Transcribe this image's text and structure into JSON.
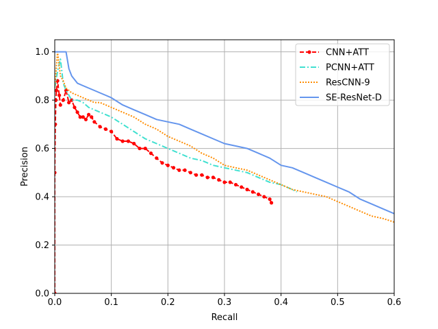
{
  "chart_data": {
    "type": "line",
    "title": "",
    "xlabel": "Recall",
    "ylabel": "Precision",
    "xlim": [
      0.0,
      0.6
    ],
    "ylim": [
      0.0,
      1.05
    ],
    "xticks": [
      0.0,
      0.1,
      0.2,
      0.3,
      0.4,
      0.5,
      0.6
    ],
    "yticks": [
      0.0,
      0.2,
      0.4,
      0.6,
      0.8,
      1.0
    ],
    "xtick_labels": [
      "0.0",
      "0.1",
      "0.2",
      "0.3",
      "0.4",
      "0.5",
      "0.6"
    ],
    "ytick_labels": [
      "0.0",
      "0.2",
      "0.4",
      "0.6",
      "0.8",
      "1.0"
    ],
    "grid": true,
    "legend_position": "top-right",
    "series": [
      {
        "name": "CNN+ATT",
        "color": "#ff0000",
        "style": "dashed-dot-markers",
        "x": [
          0.0,
          0.0,
          0.001,
          0.002,
          0.003,
          0.005,
          0.008,
          0.01,
          0.015,
          0.02,
          0.025,
          0.03,
          0.035,
          0.04,
          0.045,
          0.05,
          0.055,
          0.06,
          0.065,
          0.07,
          0.08,
          0.09,
          0.1,
          0.11,
          0.12,
          0.13,
          0.14,
          0.15,
          0.16,
          0.17,
          0.18,
          0.19,
          0.2,
          0.21,
          0.22,
          0.23,
          0.24,
          0.25,
          0.26,
          0.27,
          0.28,
          0.29,
          0.3,
          0.31,
          0.32,
          0.33,
          0.34,
          0.35,
          0.36,
          0.37,
          0.38,
          0.383
        ],
        "y": [
          0.0,
          0.5,
          0.7,
          0.8,
          0.84,
          0.88,
          0.82,
          0.78,
          0.8,
          0.84,
          0.79,
          0.8,
          0.77,
          0.75,
          0.73,
          0.73,
          0.72,
          0.74,
          0.73,
          0.71,
          0.69,
          0.68,
          0.67,
          0.64,
          0.63,
          0.63,
          0.62,
          0.6,
          0.6,
          0.58,
          0.56,
          0.54,
          0.53,
          0.52,
          0.51,
          0.51,
          0.5,
          0.49,
          0.49,
          0.48,
          0.48,
          0.47,
          0.46,
          0.46,
          0.45,
          0.44,
          0.43,
          0.42,
          0.41,
          0.4,
          0.39,
          0.375
        ]
      },
      {
        "name": "PCNN+ATT",
        "color": "#40e0d0",
        "style": "dash-dot",
        "x": [
          0.0,
          0.005,
          0.01,
          0.015,
          0.02,
          0.025,
          0.03,
          0.04,
          0.05,
          0.06,
          0.07,
          0.08,
          0.09,
          0.1,
          0.12,
          0.14,
          0.16,
          0.18,
          0.2,
          0.22,
          0.24,
          0.26,
          0.28,
          0.3,
          0.32,
          0.34,
          0.36,
          0.38,
          0.4,
          0.42,
          0.428
        ],
        "y": [
          0.85,
          0.92,
          0.97,
          0.87,
          0.84,
          0.82,
          0.8,
          0.8,
          0.79,
          0.77,
          0.76,
          0.75,
          0.74,
          0.73,
          0.7,
          0.67,
          0.64,
          0.62,
          0.6,
          0.58,
          0.56,
          0.55,
          0.53,
          0.52,
          0.51,
          0.5,
          0.48,
          0.46,
          0.45,
          0.43,
          0.42
        ]
      },
      {
        "name": "ResCNN-9",
        "color": "#ff8c00",
        "style": "dotted",
        "x": [
          0.0,
          0.005,
          0.01,
          0.015,
          0.02,
          0.03,
          0.04,
          0.05,
          0.06,
          0.07,
          0.08,
          0.09,
          0.1,
          0.12,
          0.14,
          0.16,
          0.18,
          0.2,
          0.22,
          0.24,
          0.26,
          0.28,
          0.3,
          0.32,
          0.34,
          0.36,
          0.38,
          0.4,
          0.42,
          0.44,
          0.46,
          0.48,
          0.5,
          0.52,
          0.54,
          0.56,
          0.58,
          0.6
        ],
        "y": [
          0.85,
          1.0,
          0.9,
          0.88,
          0.85,
          0.83,
          0.82,
          0.81,
          0.8,
          0.79,
          0.79,
          0.78,
          0.77,
          0.75,
          0.73,
          0.7,
          0.68,
          0.65,
          0.63,
          0.61,
          0.58,
          0.56,
          0.53,
          0.52,
          0.51,
          0.49,
          0.47,
          0.45,
          0.43,
          0.42,
          0.41,
          0.4,
          0.38,
          0.36,
          0.34,
          0.32,
          0.31,
          0.295
        ]
      },
      {
        "name": "SE-ResNet-D",
        "color": "#6495ed",
        "style": "solid",
        "x": [
          0.0,
          0.005,
          0.01,
          0.015,
          0.02,
          0.025,
          0.03,
          0.04,
          0.05,
          0.06,
          0.07,
          0.08,
          0.09,
          0.1,
          0.12,
          0.14,
          0.16,
          0.18,
          0.2,
          0.22,
          0.24,
          0.26,
          0.28,
          0.3,
          0.32,
          0.34,
          0.36,
          0.38,
          0.4,
          0.42,
          0.44,
          0.46,
          0.48,
          0.5,
          0.52,
          0.54,
          0.56,
          0.58,
          0.6
        ],
        "y": [
          1.0,
          1.0,
          1.0,
          1.0,
          1.0,
          0.93,
          0.9,
          0.87,
          0.86,
          0.85,
          0.84,
          0.83,
          0.82,
          0.81,
          0.78,
          0.76,
          0.74,
          0.72,
          0.71,
          0.7,
          0.68,
          0.66,
          0.64,
          0.62,
          0.61,
          0.6,
          0.58,
          0.56,
          0.53,
          0.52,
          0.5,
          0.48,
          0.46,
          0.44,
          0.42,
          0.39,
          0.37,
          0.35,
          0.33
        ]
      }
    ]
  }
}
